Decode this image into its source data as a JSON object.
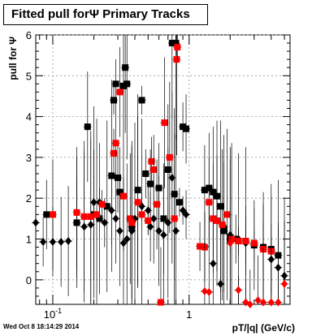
{
  "title": "Fitted pull forΨ   Primary Tracks",
  "timestamp": "Wed Oct  8 18:14:29 2014",
  "chart_data": {
    "type": "scatter",
    "title": "Fitted pull forΨ   Primary Tracks",
    "xlabel": "pT/|q| (GeV/c)",
    "ylabel": "pull for Ψ",
    "x_scale": "log",
    "xlim": [
      0.075,
      5.5
    ],
    "ylim": [
      -0.6,
      6.0
    ],
    "x_tick_labels": [
      {
        "value": 0.1,
        "label": "10^-1"
      },
      {
        "value": 1,
        "label": "1"
      }
    ],
    "y_ticks": [
      0,
      1,
      2,
      3,
      4,
      5,
      6
    ],
    "grid": true,
    "series": [
      {
        "color": "#000000",
        "marker": "diamond",
        "points": [
          [
            0.075,
            1.4
          ],
          [
            0.085,
            0.93
          ],
          [
            0.1,
            0.93
          ],
          [
            0.115,
            0.93
          ],
          [
            0.13,
            0.95
          ],
          [
            0.15,
            1.4
          ],
          [
            0.17,
            1.3
          ],
          [
            0.19,
            1.35
          ],
          [
            0.2,
            1.9
          ],
          [
            0.22,
            1.9
          ],
          [
            0.24,
            1.4
          ],
          [
            0.27,
            1.7
          ],
          [
            0.29,
            1.5
          ],
          [
            0.31,
            1.2
          ],
          [
            0.33,
            0.9
          ],
          [
            0.35,
            1.0
          ],
          [
            0.38,
            1.2
          ],
          [
            0.4,
            1.5
          ],
          [
            0.45,
            1.8
          ],
          [
            0.5,
            1.7
          ],
          [
            0.52,
            1.3
          ],
          [
            0.55,
            1.5
          ],
          [
            0.6,
            1.2
          ],
          [
            0.65,
            1.1
          ],
          [
            0.7,
            1.4
          ],
          [
            0.75,
            2.5
          ],
          [
            0.8,
            1.2
          ],
          [
            0.9,
            1.7
          ],
          [
            0.95,
            1.6
          ],
          [
            1.3,
            0.82
          ],
          [
            1.5,
            0.4
          ],
          [
            1.7,
            -0.1
          ],
          [
            1.8,
            1.3
          ],
          [
            2.0,
            1.1
          ],
          [
            2.3,
            1.0
          ],
          [
            2.6,
            0.9
          ],
          [
            3.0,
            0.85
          ],
          [
            3.5,
            0.8
          ],
          [
            4.0,
            0.5
          ],
          [
            4.5,
            0.3
          ],
          [
            5.0,
            0.1
          ]
        ]
      },
      {
        "color": "#000000",
        "marker": "square",
        "points": [
          [
            0.09,
            1.6
          ],
          [
            0.15,
            1.4
          ],
          [
            0.18,
            3.75
          ],
          [
            0.2,
            1.6
          ],
          [
            0.22,
            1.5
          ],
          [
            0.25,
            1.8
          ],
          [
            0.27,
            2.55
          ],
          [
            0.28,
            4.4
          ],
          [
            0.29,
            4.8
          ],
          [
            0.3,
            2.5
          ],
          [
            0.31,
            2.15
          ],
          [
            0.33,
            4.75
          ],
          [
            0.34,
            5.2
          ],
          [
            0.35,
            4.8
          ],
          [
            0.38,
            1.3
          ],
          [
            0.42,
            2.2
          ],
          [
            0.45,
            4.4
          ],
          [
            0.48,
            2.6
          ],
          [
            0.52,
            2.35
          ],
          [
            0.6,
            2.25
          ],
          [
            0.65,
            1.5
          ],
          [
            0.7,
            2.7
          ],
          [
            0.75,
            5.8
          ],
          [
            0.78,
            2.1
          ],
          [
            0.8,
            5.8
          ],
          [
            0.85,
            1.9
          ],
          [
            0.9,
            3.75
          ],
          [
            0.95,
            3.7
          ],
          [
            1.3,
            2.2
          ],
          [
            1.4,
            2.25
          ],
          [
            1.5,
            2.15
          ],
          [
            1.6,
            2.05
          ],
          [
            1.7,
            1.8
          ],
          [
            1.8,
            1.2
          ],
          [
            2.0,
            1.0
          ],
          [
            2.2,
            1.0
          ],
          [
            2.6,
            0.95
          ],
          [
            3.0,
            0.85
          ],
          [
            3.5,
            0.8
          ],
          [
            4.0,
            0.75
          ],
          [
            4.5,
            0.6
          ]
        ]
      },
      {
        "color": "#ff0000",
        "marker": "square",
        "points": [
          [
            0.1,
            1.6
          ],
          [
            0.15,
            1.65
          ],
          [
            0.17,
            1.55
          ],
          [
            0.19,
            1.55
          ],
          [
            0.21,
            1.6
          ],
          [
            0.23,
            1.85
          ],
          [
            0.28,
            3.1
          ],
          [
            0.29,
            3.35
          ],
          [
            0.31,
            4.6
          ],
          [
            0.33,
            2.05
          ],
          [
            0.37,
            1.5
          ],
          [
            0.38,
            1.4
          ],
          [
            0.42,
            1.9
          ],
          [
            0.45,
            1.6
          ],
          [
            0.5,
            1.45
          ],
          [
            0.53,
            2.9
          ],
          [
            0.55,
            2.7
          ],
          [
            0.58,
            1.85
          ],
          [
            0.62,
            -0.55
          ],
          [
            0.66,
            3.85
          ],
          [
            0.72,
            3.0
          ],
          [
            0.78,
            1.5
          ],
          [
            0.81,
            5.4
          ],
          [
            0.82,
            5.7
          ],
          [
            1.2,
            0.82
          ],
          [
            1.3,
            0.8
          ],
          [
            1.4,
            1.9
          ],
          [
            1.5,
            1.5
          ],
          [
            1.6,
            1.45
          ],
          [
            1.75,
            1.35
          ],
          [
            1.9,
            1.6
          ],
          [
            2.05,
            1.0
          ],
          [
            2.3,
            0.95
          ],
          [
            2.6,
            0.95
          ],
          [
            3.0,
            0.9
          ],
          [
            3.5,
            0.75
          ],
          [
            4.0,
            0.7
          ]
        ]
      },
      {
        "color": "#ff0000",
        "marker": "diamond",
        "points": [
          [
            1.3,
            -0.28
          ],
          [
            1.4,
            -0.3
          ],
          [
            2.0,
            0.9
          ],
          [
            2.3,
            -0.25
          ],
          [
            2.6,
            -0.55
          ],
          [
            2.8,
            -0.6
          ],
          [
            3.2,
            -0.5
          ],
          [
            3.5,
            -0.55
          ],
          [
            4.0,
            -0.55
          ],
          [
            4.5,
            -0.55
          ],
          [
            5.0,
            -0.1
          ]
        ]
      }
    ]
  }
}
